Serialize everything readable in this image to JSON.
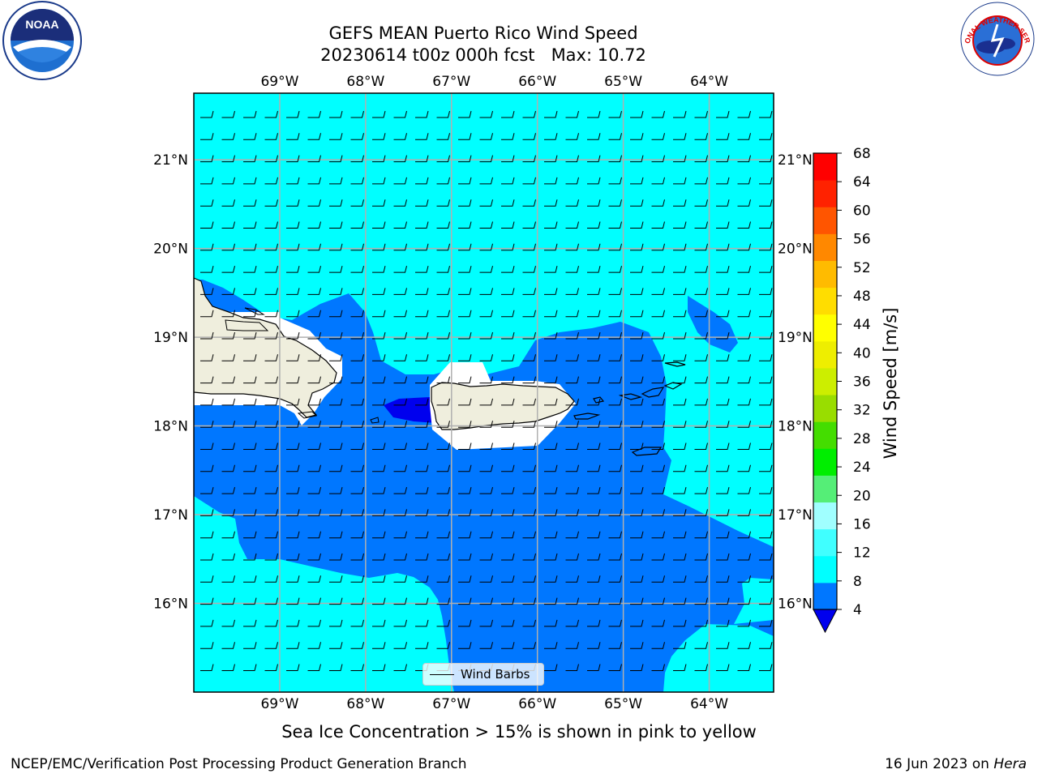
{
  "title_line1": "GEFS MEAN Puerto Rico Wind Speed",
  "title_line2": "20230614 t00z 000h fcst   Max: 10.72",
  "subtitle": "Sea Ice Concentration > 15% is shown in pink to yellow",
  "footer_left": "NCEP/EMC/Verification Post Processing Product Generation Branch",
  "footer_right_date": "16 Jun 2023 on ",
  "footer_right_host": "Hera",
  "legend_label": "Wind Barbs",
  "logos": {
    "left": "noaa-logo",
    "left_circle_text": "NATIONAL OCEANIC AND ATMOSPHERIC ADMINISTRATION",
    "left_bottom_text": "U.S. DEPARTMENT OF COMMERCE",
    "left_center": "NOAA",
    "right": "nws-logo",
    "right_circle_text": "NATIONAL WEATHER SERVICE"
  },
  "chart_data": {
    "type": "heatmap",
    "region": "Puerto Rico",
    "lon_labels": [
      "69°W",
      "68°W",
      "67°W",
      "66°W",
      "65°W",
      "64°W"
    ],
    "lat_labels": [
      "21°N",
      "20°N",
      "19°N",
      "18°N",
      "17°N",
      "16°N"
    ],
    "lon_values": [
      -69,
      -68,
      -67,
      -66,
      -65,
      -64
    ],
    "lat_values": [
      21,
      20,
      19,
      18,
      17,
      16
    ],
    "lon_range": [
      -70.0,
      -63.25
    ],
    "lat_range": [
      15.0,
      21.75
    ],
    "max_value": 10.72,
    "wind_direction": "east",
    "colorbar": {
      "label": "Wind Speed [m/s]",
      "ticks": [
        4,
        8,
        12,
        16,
        20,
        24,
        28,
        32,
        36,
        40,
        44,
        48,
        52,
        56,
        60,
        64,
        68
      ],
      "extend": "min",
      "under_color": "#0000ee",
      "colors": [
        "#0077ff",
        "#00ffff",
        "#40ffff",
        "#a0ffff",
        "#55ee77",
        "#00ee00",
        "#44dd00",
        "#99dd00",
        "#ccee00",
        "#eeee00",
        "#ffff00",
        "#ffdd00",
        "#ffbb00",
        "#ff8800",
        "#ff5500",
        "#ff2200"
      ],
      "top_color": "#ff0000"
    },
    "grid": true
  },
  "colors": {
    "land": "#efeedd",
    "low_wind": "#00ffff",
    "high_wind": "#0077ff",
    "very_low": "#0000ee"
  }
}
